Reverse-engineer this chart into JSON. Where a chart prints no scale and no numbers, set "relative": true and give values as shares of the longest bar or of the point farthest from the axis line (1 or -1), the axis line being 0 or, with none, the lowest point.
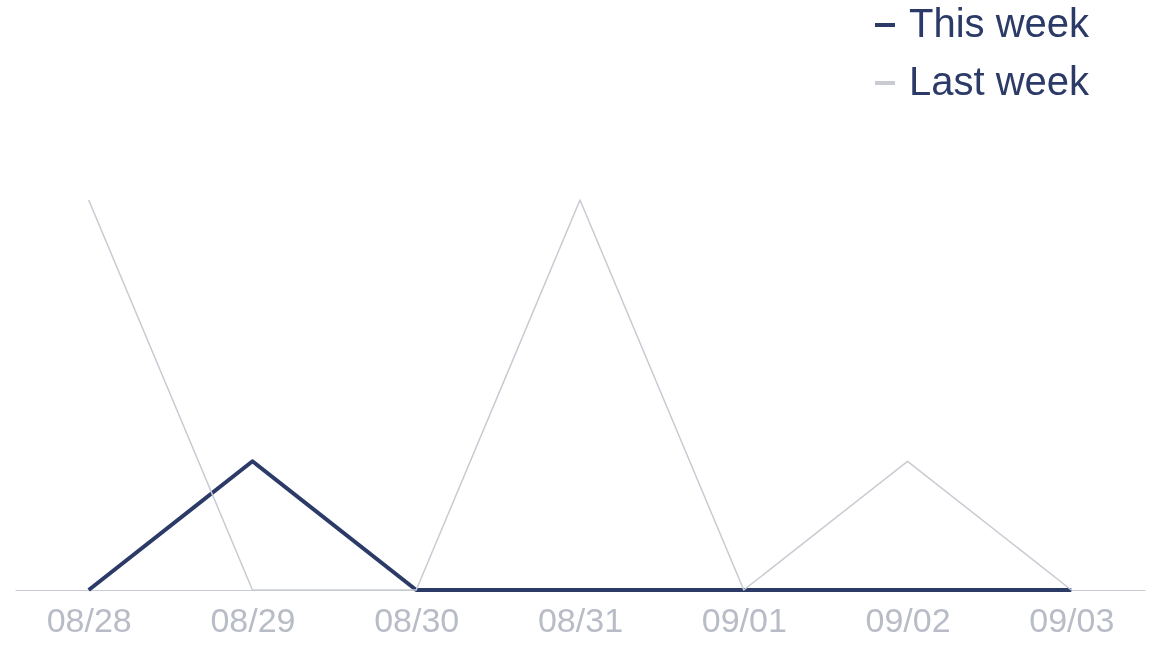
{
  "chart_data": {
    "type": "line",
    "relative": true,
    "categories": [
      "08/28",
      "08/29",
      "08/30",
      "08/31",
      "09/01",
      "09/02",
      "09/03"
    ],
    "series": [
      {
        "name": "This week",
        "color": "#2b3a67",
        "values": [
          0,
          0.33,
          0,
          0,
          0,
          0,
          0
        ]
      },
      {
        "name": "Last week",
        "color": "#c8cbd2",
        "values": [
          1,
          0,
          0,
          1,
          0,
          0.33,
          0
        ]
      }
    ],
    "legend": "top right",
    "grid": false,
    "marker": "none",
    "line_style": "solid",
    "tick_labels": "x"
  }
}
